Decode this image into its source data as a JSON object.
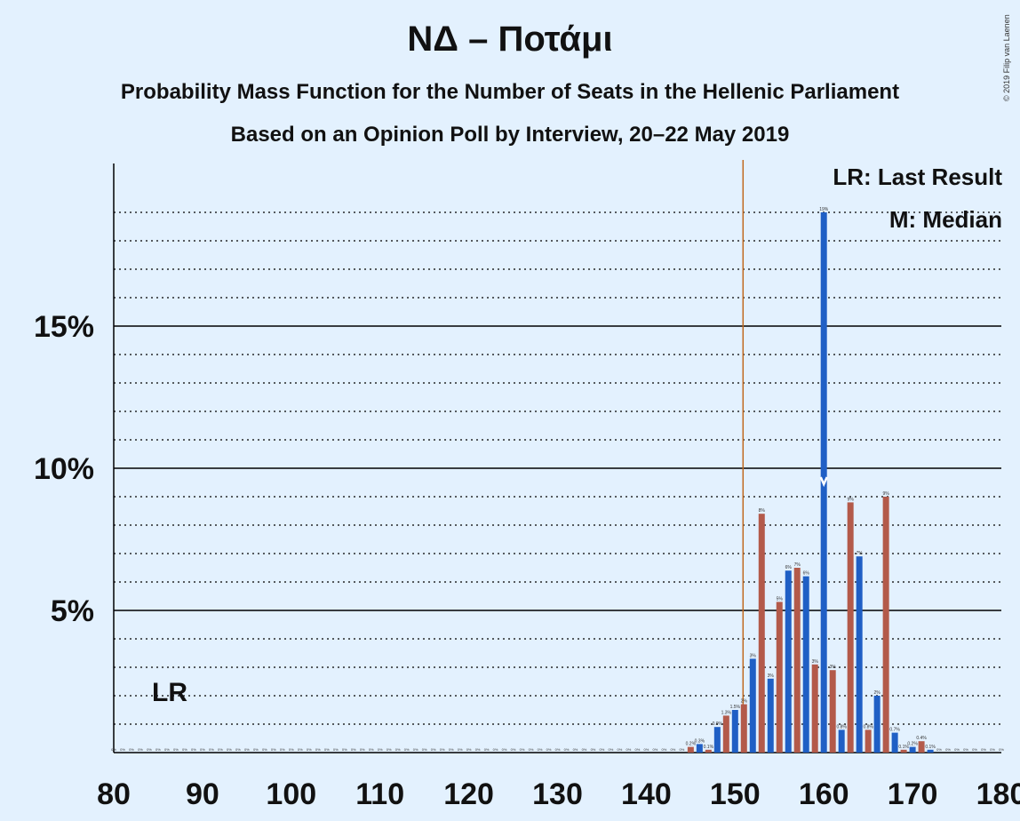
{
  "copyright": "© 2019 Filip van Laenen",
  "chart_data": {
    "type": "bar",
    "title": "ΝΔ – Ποτάμι",
    "subtitle": "Probability Mass Function for the Number of Seats in the Hellenic Parliament",
    "subtitle2": "Based on an Opinion Poll by Interview, 20–22 May 2019",
    "xlim": [
      80,
      180
    ],
    "ylim": [
      0,
      20.5
    ],
    "x_ticks": [
      "80",
      "90",
      "100",
      "110",
      "120",
      "130",
      "140",
      "150",
      "160",
      "170",
      "180"
    ],
    "y_ticks": [
      "5%",
      "10%",
      "15%"
    ],
    "grid": true,
    "last_result": 151,
    "last_result_label": "LR",
    "median": 160,
    "legend": {
      "last_result": "LR: Last Result",
      "median": "M: Median"
    },
    "colors": {
      "odd_bar": "#1f5fc5",
      "even_bar": "#b35a4a",
      "last_result_line": "#c06a20",
      "background": "#e3f1fe"
    },
    "series": [
      {
        "seats": [
          145,
          146,
          147,
          148,
          149,
          150,
          151,
          152,
          153,
          154,
          155,
          156,
          157,
          158,
          159,
          160,
          161,
          162,
          163,
          164,
          165,
          166,
          167,
          168,
          169,
          170,
          171,
          172
        ],
        "values": [
          0.2,
          0.3,
          0.1,
          0.9,
          1.3,
          1.5,
          1.7,
          3.3,
          8.4,
          2.6,
          5.3,
          6.4,
          6.5,
          6.2,
          3.1,
          19.0,
          2.9,
          0.8,
          8.8,
          6.9,
          0.8,
          2.0,
          9.0,
          0.7,
          0.1,
          0.2,
          0.4,
          0.1
        ],
        "labels": [
          "0.2%",
          "0.3%",
          "0.1%",
          "0.9%",
          "1.3%",
          "1.5%",
          "2%",
          "3%",
          "8%",
          "3%",
          "5%",
          "6%",
          "7%",
          "6%",
          "3%",
          "19%",
          "3%",
          "0.8%",
          "9%",
          "7%",
          "0.8%",
          "2%",
          "9%",
          "0.7%",
          "0.1%",
          "0.2%",
          "0.4%",
          "0.1%"
        ]
      }
    ],
    "zero_label": "0%"
  }
}
